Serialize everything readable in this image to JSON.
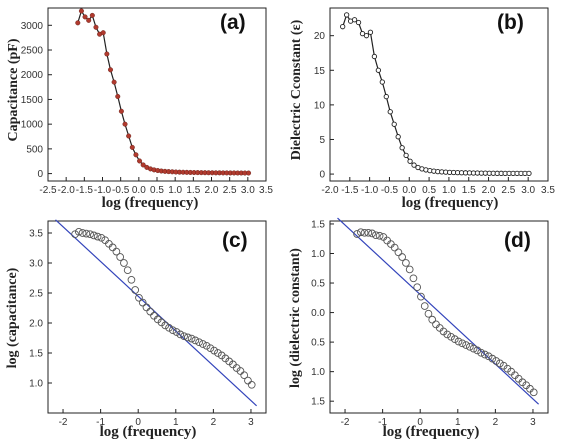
{
  "chart_data": [
    {
      "type": "line",
      "panel_label": "(a)",
      "xlabel": "log (frequency)",
      "ylabel": "Capacitance (pF)",
      "xlim": [
        -2.5,
        3.5
      ],
      "ylim": [
        -150,
        3350
      ],
      "xticks": [
        "-2.5",
        "-2.0",
        "-1.5",
        "-1.0",
        "-0.5",
        "0.0",
        "0.5",
        "1.0",
        "1.5",
        "2.0",
        "2.5",
        "3.0",
        "3.5"
      ],
      "yticks": [
        "0",
        "500",
        "1000",
        "1500",
        "2000",
        "2500",
        "3000"
      ],
      "marker": "filled-dot",
      "marker_color": "#b03a2e",
      "line_color": "#222222",
      "series": [
        {
          "x": [
            -1.68,
            -1.58,
            -1.48,
            -1.38,
            -1.28,
            -1.18,
            -1.08,
            -0.98,
            -0.88,
            -0.78,
            -0.68,
            -0.58,
            -0.48,
            -0.38,
            -0.28,
            -0.18,
            -0.08,
            0.02,
            0.12,
            0.22,
            0.32,
            0.42,
            0.52,
            0.62,
            0.72,
            0.82,
            0.92,
            1.02,
            1.12,
            1.22,
            1.32,
            1.42,
            1.52,
            1.62,
            1.72,
            1.82,
            1.92,
            2.02,
            2.12,
            2.22,
            2.32,
            2.42,
            2.52,
            2.62,
            2.72,
            2.82,
            2.92,
            3.02
          ],
          "y": [
            3050,
            3290,
            3170,
            3100,
            3200,
            2960,
            2820,
            2850,
            2420,
            2100,
            1850,
            1560,
            1260,
            1000,
            760,
            530,
            380,
            255,
            175,
            125,
            95,
            75,
            62,
            52,
            45,
            40,
            36,
            32,
            29,
            27,
            25,
            23,
            21,
            20,
            19,
            18,
            17,
            16,
            15,
            15,
            14,
            14,
            13,
            13,
            12,
            12,
            11,
            11
          ]
        }
      ]
    },
    {
      "type": "line",
      "panel_label": "(b)",
      "xlabel": "log (frequency)",
      "ylabel": "Dielectric Cconstant (ε)",
      "xlim": [
        -2.0,
        3.5
      ],
      "ylim": [
        -1,
        24
      ],
      "xticks": [
        "-2.0",
        "-1.5",
        "-1.0",
        "-0.5",
        "0.0",
        "0.5",
        "1.0",
        "1.5",
        "2.0",
        "2.5",
        "3.0",
        "3.5"
      ],
      "yticks": [
        "0",
        "5",
        "10",
        "15",
        "20"
      ],
      "marker": "open-dot",
      "marker_color": "#222222",
      "line_color": "#222222",
      "series": [
        {
          "x": [
            -1.68,
            -1.58,
            -1.48,
            -1.38,
            -1.28,
            -1.18,
            -1.08,
            -0.98,
            -0.88,
            -0.78,
            -0.68,
            -0.58,
            -0.48,
            -0.38,
            -0.28,
            -0.18,
            -0.08,
            0.02,
            0.12,
            0.22,
            0.32,
            0.42,
            0.52,
            0.62,
            0.72,
            0.82,
            0.92,
            1.02,
            1.12,
            1.22,
            1.32,
            1.42,
            1.52,
            1.62,
            1.72,
            1.82,
            1.92,
            2.02,
            2.12,
            2.22,
            2.32,
            2.42,
            2.52,
            2.62,
            2.72,
            2.82,
            2.92,
            3.02
          ],
          "y": [
            21.3,
            23.0,
            22.1,
            22.3,
            21.9,
            20.3,
            20.0,
            20.5,
            17.0,
            15.0,
            13.3,
            11.2,
            9.0,
            7.2,
            5.4,
            3.8,
            2.7,
            1.85,
            1.3,
            0.95,
            0.75,
            0.6,
            0.5,
            0.42,
            0.36,
            0.32,
            0.28,
            0.25,
            0.23,
            0.21,
            0.19,
            0.18,
            0.17,
            0.16,
            0.15,
            0.14,
            0.13,
            0.12,
            0.12,
            0.11,
            0.11,
            0.1,
            0.1,
            0.1,
            0.1,
            0.1,
            0.1,
            0.1
          ]
        }
      ]
    },
    {
      "type": "scatter",
      "panel_label": "(c)",
      "xlabel": "log (frequency)",
      "ylabel": "log (capacitance)",
      "xlim": [
        -2.4,
        3.4
      ],
      "ylim": [
        0.5,
        3.7
      ],
      "xticks": [
        "-2",
        "-1",
        "0",
        "1",
        "2",
        "3"
      ],
      "yticks": [
        "1.0",
        "1.5",
        "2.0",
        "2.5",
        "3.0",
        "3.5"
      ],
      "marker": "open-circle",
      "marker_color": "#555555",
      "fit_color": "#3344bb",
      "fit_line": {
        "x": [
          -2.2,
          3.15
        ],
        "y": [
          3.72,
          0.62
        ]
      },
      "series": [
        {
          "x": [
            -1.68,
            -1.58,
            -1.48,
            -1.38,
            -1.28,
            -1.18,
            -1.08,
            -0.98,
            -0.88,
            -0.78,
            -0.68,
            -0.58,
            -0.48,
            -0.38,
            -0.28,
            -0.18,
            -0.08,
            0.02,
            0.12,
            0.22,
            0.32,
            0.42,
            0.52,
            0.62,
            0.72,
            0.82,
            0.92,
            1.02,
            1.12,
            1.22,
            1.32,
            1.42,
            1.52,
            1.62,
            1.72,
            1.82,
            1.92,
            2.02,
            2.12,
            2.22,
            2.32,
            2.42,
            2.52,
            2.62,
            2.72,
            2.82,
            2.92,
            3.02
          ],
          "y": [
            3.48,
            3.52,
            3.5,
            3.49,
            3.48,
            3.46,
            3.44,
            3.42,
            3.38,
            3.32,
            3.26,
            3.19,
            3.1,
            3.0,
            2.88,
            2.72,
            2.55,
            2.42,
            2.34,
            2.26,
            2.19,
            2.12,
            2.06,
            2.01,
            1.96,
            1.92,
            1.88,
            1.85,
            1.81,
            1.78,
            1.76,
            1.74,
            1.71,
            1.68,
            1.65,
            1.62,
            1.58,
            1.54,
            1.5,
            1.46,
            1.41,
            1.36,
            1.31,
            1.25,
            1.2,
            1.13,
            1.04,
            0.97
          ]
        }
      ]
    },
    {
      "type": "scatter",
      "panel_label": "(d)",
      "xlabel": "log (frequency)",
      "ylabel": "log (dielectric constant)",
      "xlim": [
        -2.4,
        3.4
      ],
      "ylim": [
        -1.7,
        1.55
      ],
      "xticks": [
        "-2",
        "-1",
        "0",
        "1",
        "2",
        "3"
      ],
      "yticks": [
        "1.5",
        "1.0",
        "0.5",
        "0.0",
        "0.5",
        "1.0",
        "1.5"
      ],
      "marker": "open-circle",
      "marker_color": "#555555",
      "fit_color": "#3344bb",
      "fit_line": {
        "x": [
          -2.2,
          3.15
        ],
        "y": [
          1.6,
          -1.55
        ]
      },
      "series": [
        {
          "x": [
            -1.68,
            -1.58,
            -1.48,
            -1.38,
            -1.28,
            -1.18,
            -1.08,
            -0.98,
            -0.88,
            -0.78,
            -0.68,
            -0.58,
            -0.48,
            -0.38,
            -0.28,
            -0.18,
            -0.08,
            0.02,
            0.12,
            0.22,
            0.32,
            0.42,
            0.52,
            0.62,
            0.72,
            0.82,
            0.92,
            1.02,
            1.12,
            1.22,
            1.32,
            1.42,
            1.52,
            1.62,
            1.72,
            1.82,
            1.92,
            2.02,
            2.12,
            2.22,
            2.32,
            2.42,
            2.52,
            2.62,
            2.72,
            2.82,
            2.92,
            3.02
          ],
          "y": [
            1.33,
            1.36,
            1.35,
            1.35,
            1.34,
            1.31,
            1.3,
            1.28,
            1.22,
            1.16,
            1.1,
            1.02,
            0.94,
            0.84,
            0.73,
            0.58,
            0.43,
            0.27,
            0.11,
            -0.02,
            -0.12,
            -0.2,
            -0.26,
            -0.32,
            -0.37,
            -0.41,
            -0.45,
            -0.49,
            -0.52,
            -0.55,
            -0.58,
            -0.61,
            -0.64,
            -0.68,
            -0.71,
            -0.74,
            -0.78,
            -0.82,
            -0.86,
            -0.9,
            -0.95,
            -1.0,
            -1.06,
            -1.12,
            -1.18,
            -1.23,
            -1.29,
            -1.35
          ]
        }
      ]
    }
  ]
}
